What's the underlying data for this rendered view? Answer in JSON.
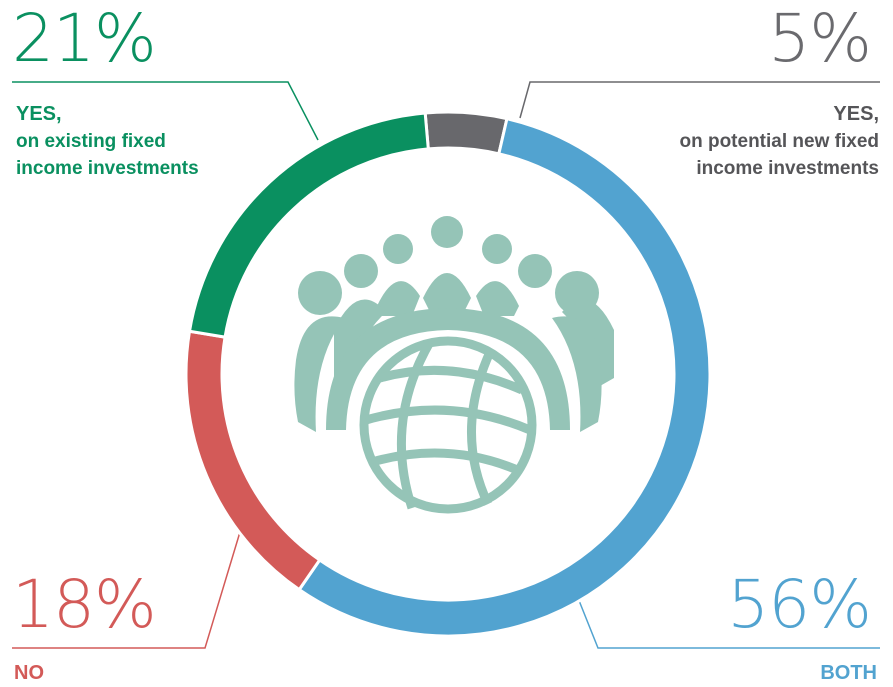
{
  "chart_data": {
    "type": "pie",
    "style": "donut",
    "slices": [
      {
        "percent_label": "5%",
        "value": 5,
        "label_line1": "YES,",
        "label_line2": "on potential new fixed",
        "label_line3": "income investments",
        "color": "#68686c"
      },
      {
        "percent_label": "56%",
        "value": 56,
        "label_line1": "BOTH",
        "label_line2": "",
        "label_line3": "",
        "color": "#52a3d0"
      },
      {
        "percent_label": "18%",
        "value": 18,
        "label_line1": "NO",
        "label_line2": "",
        "label_line3": "",
        "color": "#d35a58"
      },
      {
        "percent_label": "21%",
        "value": 21,
        "label_line1": "YES,",
        "label_line2": "on existing fixed",
        "label_line3": "income investments",
        "color": "#0a9060"
      }
    ],
    "center_icon": "people-around-globe-icon",
    "icon_color": "#95c4b7"
  }
}
